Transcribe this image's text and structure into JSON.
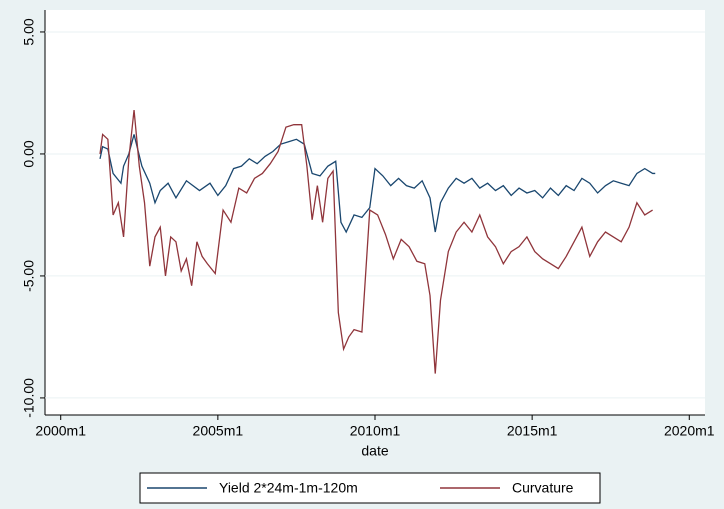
{
  "chart_data": {
    "type": "line",
    "x_label": "date",
    "xlim": [
      474,
      726
    ],
    "xticks": [
      {
        "value": 480,
        "label": "2000m1"
      },
      {
        "value": 540,
        "label": "2005m1"
      },
      {
        "value": 600,
        "label": "2010m1"
      },
      {
        "value": 660,
        "label": "2015m1"
      },
      {
        "value": 720,
        "label": "2020m1"
      }
    ],
    "ylim": [
      -10.7,
      5.9
    ],
    "yticks": [
      {
        "value": -10,
        "label": "-10.00"
      },
      {
        "value": -5,
        "label": "-5.00"
      },
      {
        "value": 0,
        "label": "0.00"
      },
      {
        "value": 5,
        "label": "5.00"
      }
    ],
    "grid": true,
    "legend": "bottom",
    "series": [
      {
        "name": "Yield 2*24m-1m-120m",
        "color": "#1a476f",
        "x": [
          495,
          496,
          498,
          500,
          503,
          504,
          506,
          508,
          511,
          514,
          516,
          518,
          521,
          524,
          528,
          533,
          537,
          540,
          543,
          546,
          549,
          552,
          555,
          558,
          561,
          564,
          567,
          570,
          573,
          576,
          579,
          582,
          585,
          587,
          589,
          592,
          595,
          598,
          600,
          603,
          606,
          609,
          612,
          615,
          618,
          621,
          623,
          625,
          628,
          631,
          634,
          637,
          640,
          643,
          646,
          649,
          652,
          655,
          658,
          661,
          664,
          667,
          670,
          673,
          676,
          679,
          682,
          685,
          688,
          691,
          694,
          697,
          700,
          703,
          706,
          707
        ],
        "values": [
          -0.2,
          0.3,
          0.2,
          -0.8,
          -1.2,
          -0.5,
          0.0,
          0.8,
          -0.5,
          -1.2,
          -2.0,
          -1.5,
          -1.2,
          -1.8,
          -1.1,
          -1.5,
          -1.2,
          -1.7,
          -1.3,
          -0.6,
          -0.5,
          -0.2,
          -0.4,
          -0.1,
          0.1,
          0.4,
          0.5,
          0.6,
          0.4,
          -0.8,
          -0.9,
          -0.5,
          -0.3,
          -2.8,
          -3.2,
          -2.5,
          -2.6,
          -2.2,
          -0.6,
          -0.9,
          -1.3,
          -1.0,
          -1.3,
          -1.4,
          -1.1,
          -1.8,
          -3.2,
          -2.0,
          -1.4,
          -1.0,
          -1.2,
          -1.0,
          -1.4,
          -1.2,
          -1.5,
          -1.3,
          -1.7,
          -1.4,
          -1.6,
          -1.5,
          -1.8,
          -1.4,
          -1.7,
          -1.3,
          -1.5,
          -1.0,
          -1.2,
          -1.6,
          -1.3,
          -1.1,
          -1.2,
          -1.3,
          -0.8,
          -0.6,
          -0.8,
          -0.8
        ]
      },
      {
        "name": "Curvature",
        "color": "#90353b",
        "x": [
          495,
          496,
          498,
          500,
          502,
          504,
          506,
          508,
          510,
          512,
          514,
          516,
          518,
          520,
          522,
          524,
          526,
          528,
          530,
          532,
          534,
          536,
          539,
          542,
          545,
          548,
          551,
          554,
          557,
          560,
          563,
          566,
          569,
          572,
          574,
          576,
          578,
          580,
          582,
          584,
          586,
          588,
          590,
          592,
          595,
          598,
          601,
          604,
          607,
          610,
          613,
          616,
          619,
          621,
          623,
          625,
          628,
          631,
          634,
          637,
          640,
          643,
          646,
          649,
          652,
          655,
          658,
          661,
          664,
          667,
          670,
          673,
          676,
          679,
          682,
          685,
          688,
          691,
          694,
          697,
          700,
          703,
          706
        ],
        "values": [
          0.0,
          0.8,
          0.6,
          -2.5,
          -2.0,
          -3.4,
          -0.2,
          1.8,
          -0.5,
          -2.0,
          -4.6,
          -3.4,
          -3.0,
          -5.0,
          -3.4,
          -3.6,
          -4.8,
          -4.3,
          -5.4,
          -3.6,
          -4.2,
          -4.5,
          -4.9,
          -2.3,
          -2.8,
          -1.4,
          -1.6,
          -1.0,
          -0.8,
          -0.4,
          0.1,
          1.1,
          1.2,
          1.2,
          -0.5,
          -2.7,
          -1.3,
          -2.8,
          -1.0,
          -0.7,
          -6.5,
          -8.0,
          -7.5,
          -7.2,
          -7.3,
          -2.3,
          -2.5,
          -3.3,
          -4.3,
          -3.5,
          -3.8,
          -4.4,
          -4.5,
          -5.8,
          -9.0,
          -6.0,
          -4.0,
          -3.2,
          -2.8,
          -3.2,
          -2.5,
          -3.4,
          -3.8,
          -4.5,
          -4.0,
          -3.8,
          -3.4,
          -4.0,
          -4.3,
          -4.5,
          -4.7,
          -4.2,
          -3.6,
          -3.0,
          -4.2,
          -3.6,
          -3.2,
          -3.4,
          -3.6,
          -3.0,
          -2.0,
          -2.5,
          -2.3
        ]
      }
    ]
  }
}
